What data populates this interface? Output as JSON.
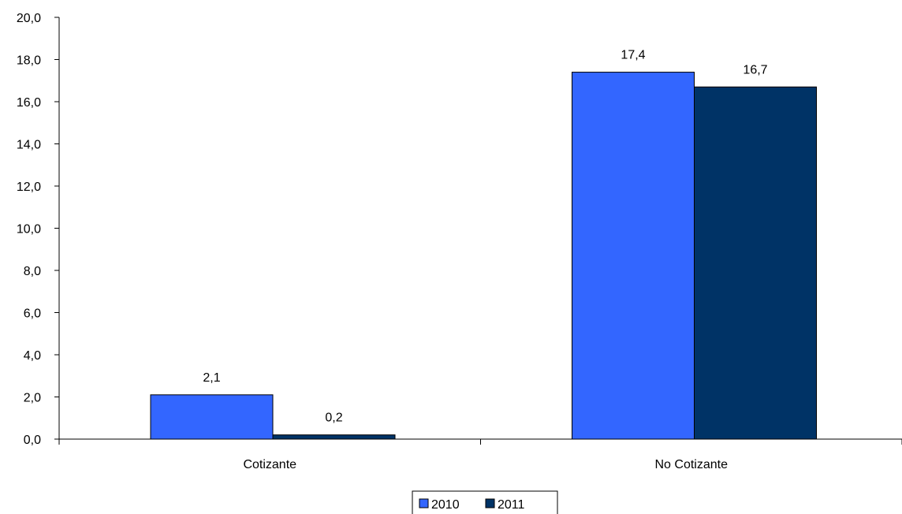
{
  "chart_data": {
    "type": "bar",
    "title": "",
    "xlabel": "",
    "ylabel": "",
    "categories": [
      "Cotizante",
      "No Cotizante"
    ],
    "series": [
      {
        "name": "2010",
        "values": [
          2.1,
          17.4
        ],
        "labels": [
          "2,1",
          "17,4"
        ],
        "color": "#3366ff"
      },
      {
        "name": "2011",
        "values": [
          0.2,
          16.7
        ],
        "labels": [
          "0,2",
          "16,7"
        ],
        "color": "#003366"
      }
    ],
    "ylim": [
      0,
      20
    ],
    "yticks": [
      0,
      2,
      4,
      6,
      8,
      10,
      12,
      14,
      16,
      18,
      20
    ],
    "ytick_labels": [
      "0,0",
      "2,0",
      "4,0",
      "6,0",
      "8,0",
      "10,0",
      "12,0",
      "14,0",
      "16,0",
      "18,0",
      "20,0"
    ],
    "grid": false,
    "legend_position": "bottom-center"
  }
}
